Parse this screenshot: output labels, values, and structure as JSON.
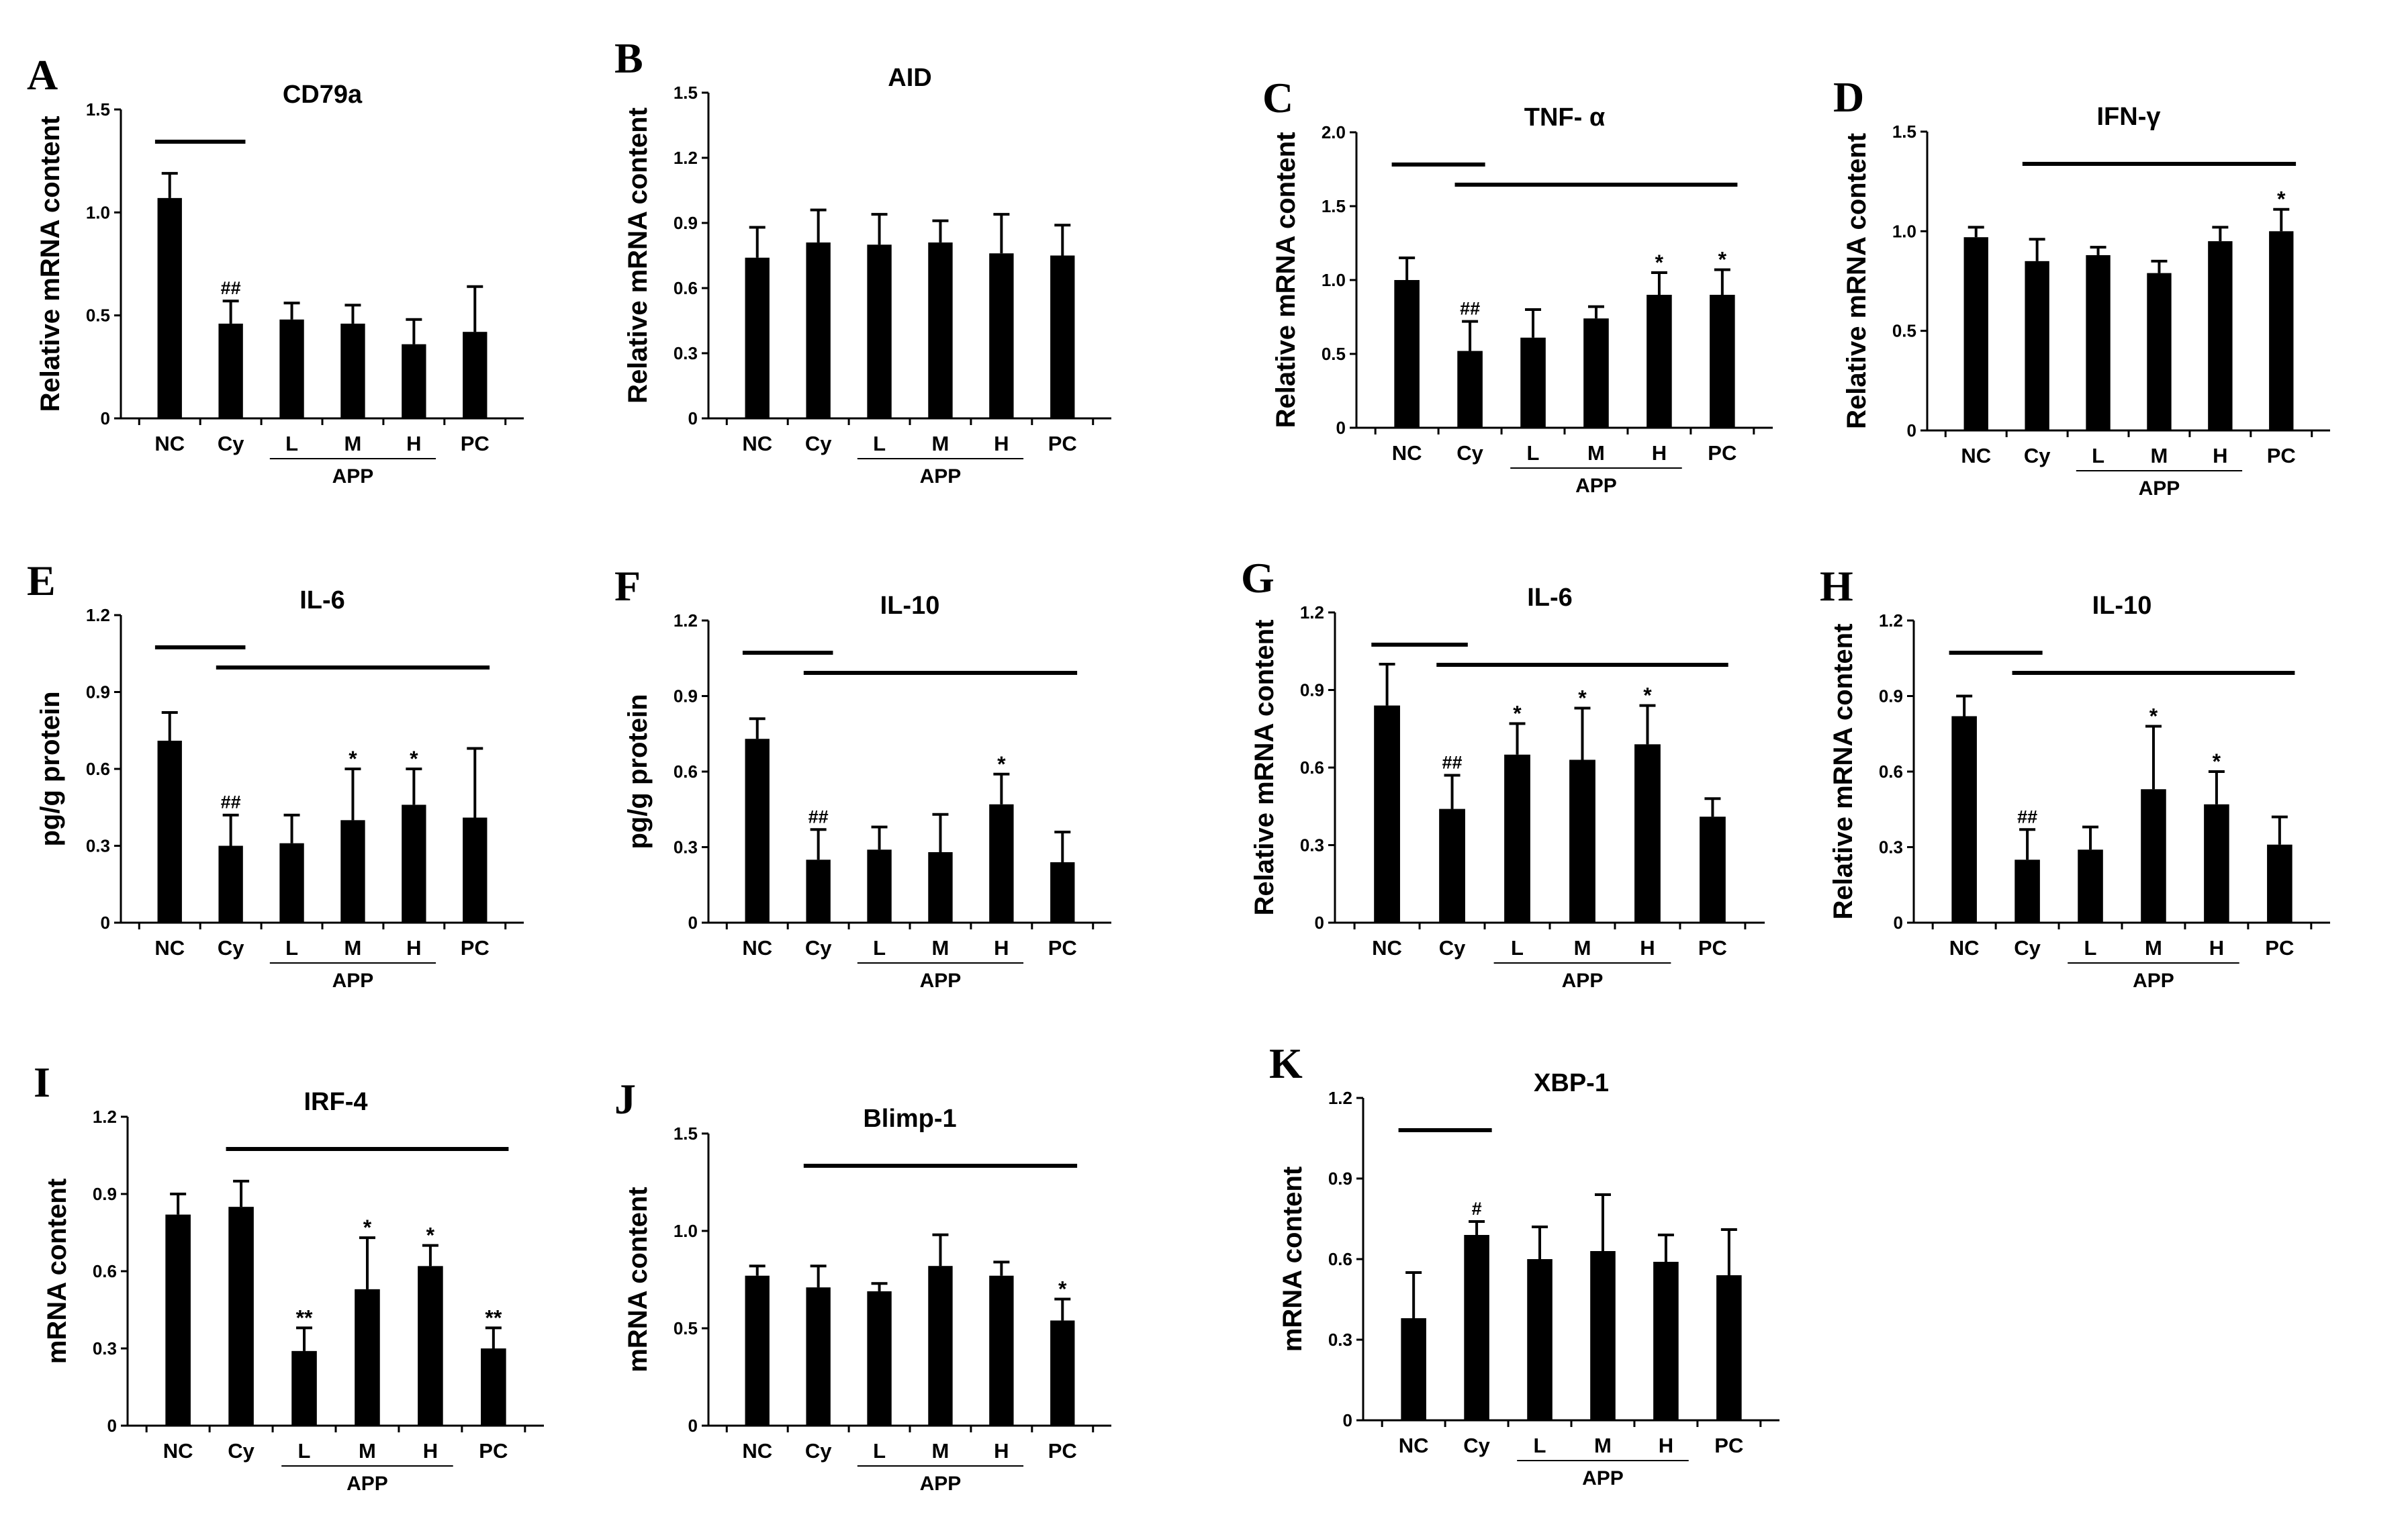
{
  "chart_data": [
    {
      "panel": "A",
      "type": "bar",
      "title": "CD79a",
      "ylabel": "Relative mRNA content",
      "ylim": [
        0,
        1.5
      ],
      "yticks": [
        "0",
        "0.5",
        "1.0",
        "1.5"
      ],
      "categories": [
        "NC",
        "Cy",
        "L",
        "M",
        "H",
        "PC"
      ],
      "group_label": "APP",
      "values": [
        1.07,
        0.46,
        0.48,
        0.46,
        0.36,
        0.42
      ],
      "errors": [
        0.12,
        0.11,
        0.08,
        0.09,
        0.12,
        0.22
      ],
      "annotations": [
        "",
        "##",
        "",
        "",
        "",
        ""
      ],
      "brackets": [
        [
          0,
          1
        ]
      ]
    },
    {
      "panel": "B",
      "type": "bar",
      "title": "AID",
      "ylabel": "Relative mRNA content",
      "ylim": [
        0,
        1.5
      ],
      "yticks": [
        "0",
        "0.3",
        "0.6",
        "0.9",
        "1.2",
        "1.5"
      ],
      "categories": [
        "NC",
        "Cy",
        "L",
        "M",
        "H",
        "PC"
      ],
      "group_label": "APP",
      "values": [
        0.74,
        0.81,
        0.8,
        0.81,
        0.76,
        0.75
      ],
      "errors": [
        0.14,
        0.15,
        0.14,
        0.1,
        0.18,
        0.14
      ],
      "annotations": [
        "",
        "",
        "",
        "",
        "",
        ""
      ],
      "brackets": []
    },
    {
      "panel": "C",
      "type": "bar",
      "title": "TNF- α",
      "ylabel": "Relative mRNA content",
      "ylim": [
        0,
        2.0
      ],
      "yticks": [
        "0",
        "0.5",
        "1.0",
        "1.5",
        "2.0"
      ],
      "categories": [
        "NC",
        "Cy",
        "L",
        "M",
        "H",
        "PC"
      ],
      "group_label": "APP",
      "values": [
        1.0,
        0.52,
        0.61,
        0.74,
        0.9,
        0.9
      ],
      "errors": [
        0.15,
        0.2,
        0.19,
        0.08,
        0.15,
        0.17
      ],
      "annotations": [
        "",
        "##",
        "",
        "",
        "*",
        "*"
      ],
      "brackets": [
        [
          0,
          1
        ],
        [
          1,
          5
        ]
      ]
    },
    {
      "panel": "D",
      "type": "bar",
      "title": "IFN-γ",
      "ylabel": "Relative mRNA content",
      "ylim": [
        0,
        1.5
      ],
      "yticks": [
        "0",
        "0.5",
        "1.0",
        "1.5"
      ],
      "categories": [
        "NC",
        "Cy",
        "L",
        "M",
        "H",
        "PC"
      ],
      "group_label": "APP",
      "values": [
        0.97,
        0.85,
        0.88,
        0.79,
        0.95,
        1.0
      ],
      "errors": [
        0.05,
        0.11,
        0.04,
        0.06,
        0.07,
        0.11
      ],
      "annotations": [
        "",
        "",
        "",
        "",
        "",
        "*"
      ],
      "brackets": [
        [
          1,
          5
        ]
      ]
    },
    {
      "panel": "E",
      "type": "bar",
      "title": "IL-6",
      "ylabel": "pg/g protein",
      "ylim": [
        0,
        1.2
      ],
      "yticks": [
        "0",
        "0.3",
        "0.6",
        "0.9",
        "1.2"
      ],
      "categories": [
        "NC",
        "Cy",
        "L",
        "M",
        "H",
        "PC"
      ],
      "group_label": "APP",
      "values": [
        0.71,
        0.3,
        0.31,
        0.4,
        0.46,
        0.41
      ],
      "errors": [
        0.11,
        0.12,
        0.11,
        0.2,
        0.14,
        0.27
      ],
      "annotations": [
        "",
        "##",
        "",
        "*",
        "*",
        ""
      ],
      "brackets": [
        [
          0,
          1
        ],
        [
          1,
          5
        ]
      ]
    },
    {
      "panel": "F",
      "type": "bar",
      "title": "IL-10",
      "ylabel": "pg/g protein",
      "ylim": [
        0,
        1.2
      ],
      "yticks": [
        "0",
        "0.3",
        "0.6",
        "0.9",
        "1.2"
      ],
      "categories": [
        "NC",
        "Cy",
        "L",
        "M",
        "H",
        "PC"
      ],
      "group_label": "APP",
      "values": [
        0.73,
        0.25,
        0.29,
        0.28,
        0.47,
        0.24
      ],
      "errors": [
        0.08,
        0.12,
        0.09,
        0.15,
        0.12,
        0.12
      ],
      "annotations": [
        "",
        "##",
        "",
        "",
        "*",
        ""
      ],
      "brackets": [
        [
          0,
          1
        ],
        [
          1,
          5
        ]
      ]
    },
    {
      "panel": "G",
      "type": "bar",
      "title": "IL-6",
      "ylabel": "Relative mRNA content",
      "ylim": [
        0,
        1.2
      ],
      "yticks": [
        "0",
        "0.3",
        "0.6",
        "0.9",
        "1.2"
      ],
      "categories": [
        "NC",
        "Cy",
        "L",
        "M",
        "H",
        "PC"
      ],
      "group_label": "APP",
      "values": [
        0.84,
        0.44,
        0.65,
        0.63,
        0.69,
        0.41
      ],
      "errors": [
        0.16,
        0.13,
        0.12,
        0.2,
        0.15,
        0.07
      ],
      "annotations": [
        "",
        "##",
        "*",
        "*",
        "*",
        ""
      ],
      "brackets": [
        [
          0,
          1
        ],
        [
          1,
          5
        ]
      ]
    },
    {
      "panel": "H",
      "type": "bar",
      "title": "IL-10",
      "ylabel": "Relative mRNA content",
      "ylim": [
        0,
        1.2
      ],
      "yticks": [
        "0",
        "0.3",
        "0.6",
        "0.9",
        "1.2"
      ],
      "categories": [
        "NC",
        "Cy",
        "L",
        "M",
        "H",
        "PC"
      ],
      "group_label": "APP",
      "values": [
        0.82,
        0.25,
        0.29,
        0.53,
        0.47,
        0.31
      ],
      "errors": [
        0.08,
        0.12,
        0.09,
        0.25,
        0.13,
        0.11
      ],
      "annotations": [
        "",
        "##",
        "",
        "*",
        "*",
        ""
      ],
      "brackets": [
        [
          0,
          1
        ],
        [
          1,
          5
        ]
      ]
    },
    {
      "panel": "I",
      "type": "bar",
      "title": "IRF-4",
      "ylabel": "mRNA content",
      "ylim": [
        0,
        1.2
      ],
      "yticks": [
        "0",
        "0.3",
        "0.6",
        "0.9",
        "1.2"
      ],
      "categories": [
        "NC",
        "Cy",
        "L",
        "M",
        "H",
        "PC"
      ],
      "group_label": "APP",
      "values": [
        0.82,
        0.85,
        0.29,
        0.53,
        0.62,
        0.3
      ],
      "errors": [
        0.08,
        0.1,
        0.09,
        0.2,
        0.08,
        0.08
      ],
      "annotations": [
        "",
        "",
        "**",
        "*",
        "*",
        "**"
      ],
      "brackets": [
        [
          1,
          5
        ]
      ]
    },
    {
      "panel": "J",
      "type": "bar",
      "title": "Blimp-1",
      "ylabel": "mRNA content",
      "ylim": [
        0,
        1.5
      ],
      "yticks": [
        "0",
        "0.5",
        "1.0",
        "1.5"
      ],
      "categories": [
        "NC",
        "Cy",
        "L",
        "M",
        "H",
        "PC"
      ],
      "group_label": "APP",
      "values": [
        0.77,
        0.71,
        0.69,
        0.82,
        0.77,
        0.54
      ],
      "errors": [
        0.05,
        0.11,
        0.04,
        0.16,
        0.07,
        0.11
      ],
      "annotations": [
        "",
        "",
        "",
        "",
        "",
        "*"
      ],
      "brackets": [
        [
          1,
          5
        ]
      ]
    },
    {
      "panel": "K",
      "type": "bar",
      "title": "XBP-1",
      "ylabel": "mRNA content",
      "ylim": [
        0,
        1.2
      ],
      "yticks": [
        "0",
        "0.3",
        "0.6",
        "0.9",
        "1.2"
      ],
      "categories": [
        "NC",
        "Cy",
        "L",
        "M",
        "H",
        "PC"
      ],
      "group_label": "APP",
      "values": [
        0.38,
        0.69,
        0.6,
        0.63,
        0.59,
        0.54
      ],
      "errors": [
        0.17,
        0.05,
        0.12,
        0.21,
        0.1,
        0.17
      ],
      "annotations": [
        "",
        "#",
        "",
        "",
        "",
        ""
      ],
      "brackets": [
        [
          0,
          1
        ]
      ]
    }
  ]
}
